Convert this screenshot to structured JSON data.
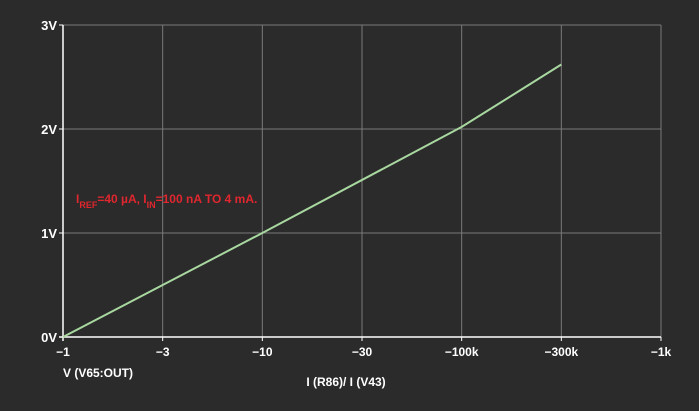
{
  "chart_data": {
    "type": "line",
    "title": "",
    "xlabel": "I (R86)/ I (V43)",
    "ylabel": "V (V65:OUT)",
    "x_scale": "log",
    "x_ticks": [
      "−1",
      "−3",
      "−10",
      "−30",
      "−100k",
      "−300k",
      "−1k"
    ],
    "y_ticks": [
      "0V",
      "1V",
      "2V",
      "3V"
    ],
    "ylim": [
      0,
      3
    ],
    "grid": true,
    "series": [
      {
        "x": [
          1,
          10,
          100,
          316
        ],
        "y": [
          0,
          1.0,
          2.02,
          2.62
        ]
      }
    ],
    "annotation": {
      "p1": "I",
      "p1_sub": "REF",
      "p2": "=40 µA,  I",
      "p2_sub": "IN",
      "p3": "=100 nA TO 4 mA."
    },
    "colors": {
      "background": "#2b2b2b",
      "line": "#a8d8a0",
      "grid": "#7a7a7a",
      "text": "#ffffff",
      "annotation": "#e0262e"
    }
  }
}
